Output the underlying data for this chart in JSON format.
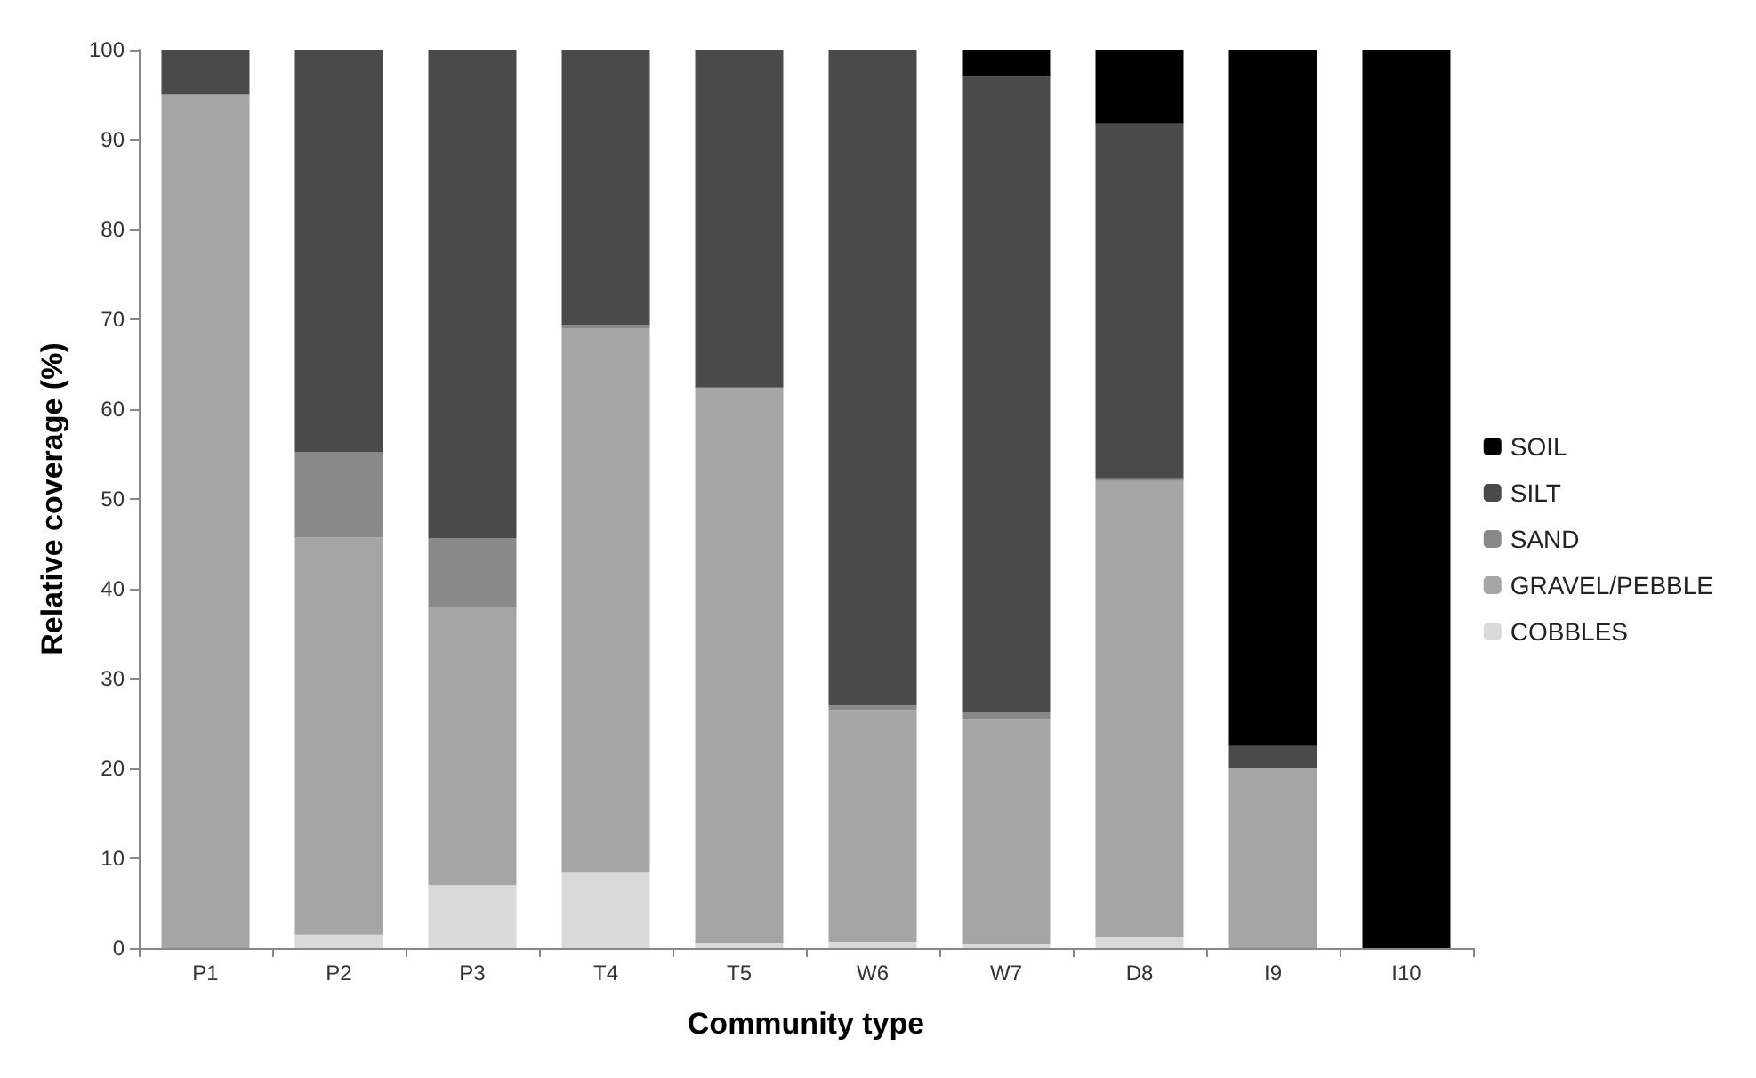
{
  "chart_data": {
    "type": "bar",
    "stacked": true,
    "xlabel": "Community type",
    "ylabel": "Relative coverage (%)",
    "categories": [
      "P1",
      "P2",
      "P3",
      "T4",
      "T5",
      "W6",
      "W7",
      "D8",
      "I9",
      "I10"
    ],
    "series": [
      {
        "name": "COBBLES",
        "color": "#d9d9d9",
        "values": [
          0,
          1.5,
          7,
          8.5,
          0.6,
          0.7,
          0.5,
          1.2,
          0,
          0
        ]
      },
      {
        "name": "GRAVEL/PEBBLE",
        "color": "#a5a5a5",
        "values": [
          95,
          44.2,
          31,
          60.5,
          61.8,
          25.8,
          25,
          50.8,
          20,
          0
        ]
      },
      {
        "name": "SAND",
        "color": "#898989",
        "values": [
          0,
          9.5,
          7.6,
          0.4,
          0,
          0.5,
          0.7,
          0.3,
          0,
          0
        ]
      },
      {
        "name": "SILT",
        "color": "#4a4a4a",
        "values": [
          5,
          44.8,
          54.4,
          30.6,
          37.6,
          73,
          70.8,
          39.5,
          2.5,
          0
        ]
      },
      {
        "name": "SOIL",
        "color": "#000000",
        "values": [
          0,
          0,
          0,
          0,
          0,
          0,
          3,
          8.2,
          77.5,
          100
        ]
      }
    ],
    "ylim": [
      0,
      100
    ],
    "yticks": [
      0,
      10,
      20,
      30,
      40,
      50,
      60,
      70,
      80,
      90,
      100
    ],
    "grid": false,
    "legend": "right"
  }
}
